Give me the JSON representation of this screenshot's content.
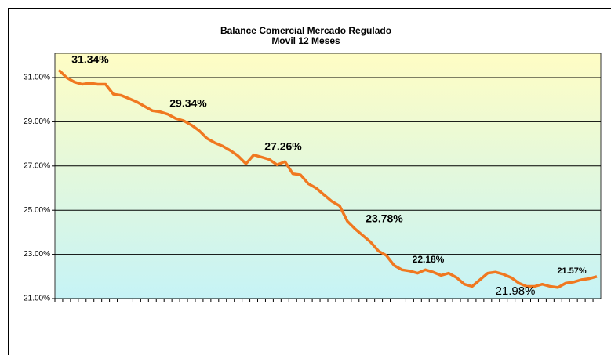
{
  "chart_data": {
    "type": "line",
    "title": "Balance Comercial Mercado Regulado",
    "subtitle": "Movil 12 Meses",
    "categories": [
      null,
      null,
      null,
      null,
      null,
      null,
      null,
      null,
      null,
      null,
      null,
      null,
      null,
      null,
      null,
      null,
      null,
      null,
      null,
      null,
      null,
      null,
      null,
      null,
      null,
      null,
      null,
      null,
      null,
      null,
      null,
      null,
      null,
      null,
      null,
      null,
      null,
      null,
      null,
      null,
      null,
      null,
      null,
      null,
      null,
      null,
      null,
      null,
      null,
      null,
      null,
      null,
      null,
      null,
      null,
      null,
      null,
      null,
      null,
      null,
      null,
      null,
      null,
      null,
      null,
      null,
      null,
      null,
      null,
      null
    ],
    "series": [
      {
        "color": "#f07820",
        "values": [
          31.34,
          31.0,
          30.8,
          30.7,
          30.75,
          30.7,
          30.7,
          30.25,
          30.2,
          30.05,
          29.9,
          29.7,
          29.5,
          29.45,
          29.34,
          29.15,
          29.05,
          28.85,
          28.6,
          28.25,
          28.05,
          27.9,
          27.7,
          27.45,
          27.1,
          27.5,
          27.4,
          27.3,
          27.05,
          27.2,
          26.65,
          26.6,
          26.2,
          26.0,
          25.7,
          25.4,
          25.2,
          24.5,
          24.15,
          23.85,
          23.55,
          23.15,
          22.95,
          22.5,
          22.3,
          22.25,
          22.15,
          22.3,
          22.2,
          22.05,
          22.15,
          21.95,
          21.65,
          21.55,
          21.85,
          22.15,
          22.2,
          22.1,
          21.95,
          21.7,
          21.55,
          21.55,
          21.65,
          21.55,
          21.5,
          21.7,
          21.75,
          21.85,
          21.9,
          22.0
        ]
      }
    ],
    "annotations": [
      "31.34%",
      "29.34%",
      "27.26%",
      "23.78%",
      "22.18%",
      "21.57%",
      "21.98%"
    ],
    "ylim": [
      21,
      32.1
    ],
    "yticks": [
      {
        "value": 21,
        "label": "21.00%"
      },
      {
        "value": 23,
        "label": "23.00%"
      },
      {
        "value": 25,
        "label": "25.00%"
      },
      {
        "value": 27,
        "label": "27.00%"
      },
      {
        "value": 29,
        "label": "29.00%"
      },
      {
        "value": 31,
        "label": "31.00%"
      }
    ],
    "grid": true
  }
}
